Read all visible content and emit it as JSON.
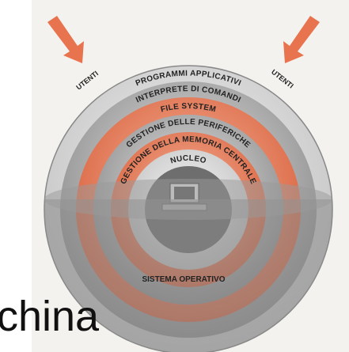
{
  "labels": {
    "users_left": "UTENTI",
    "users_right": "UTENTI",
    "layers": [
      "PROGRAMMI APPLICATIVI",
      "INTERPRETE DI COMANDI",
      "FILE SYSTEM",
      "GESTIONE DELLE PERIFERICHE",
      "GESTIONE DELLA MEMORIA CENTRALE",
      "NUCLEO"
    ],
    "base": "SISTEMA OPERATIVO"
  },
  "overlay_text": "china"
}
